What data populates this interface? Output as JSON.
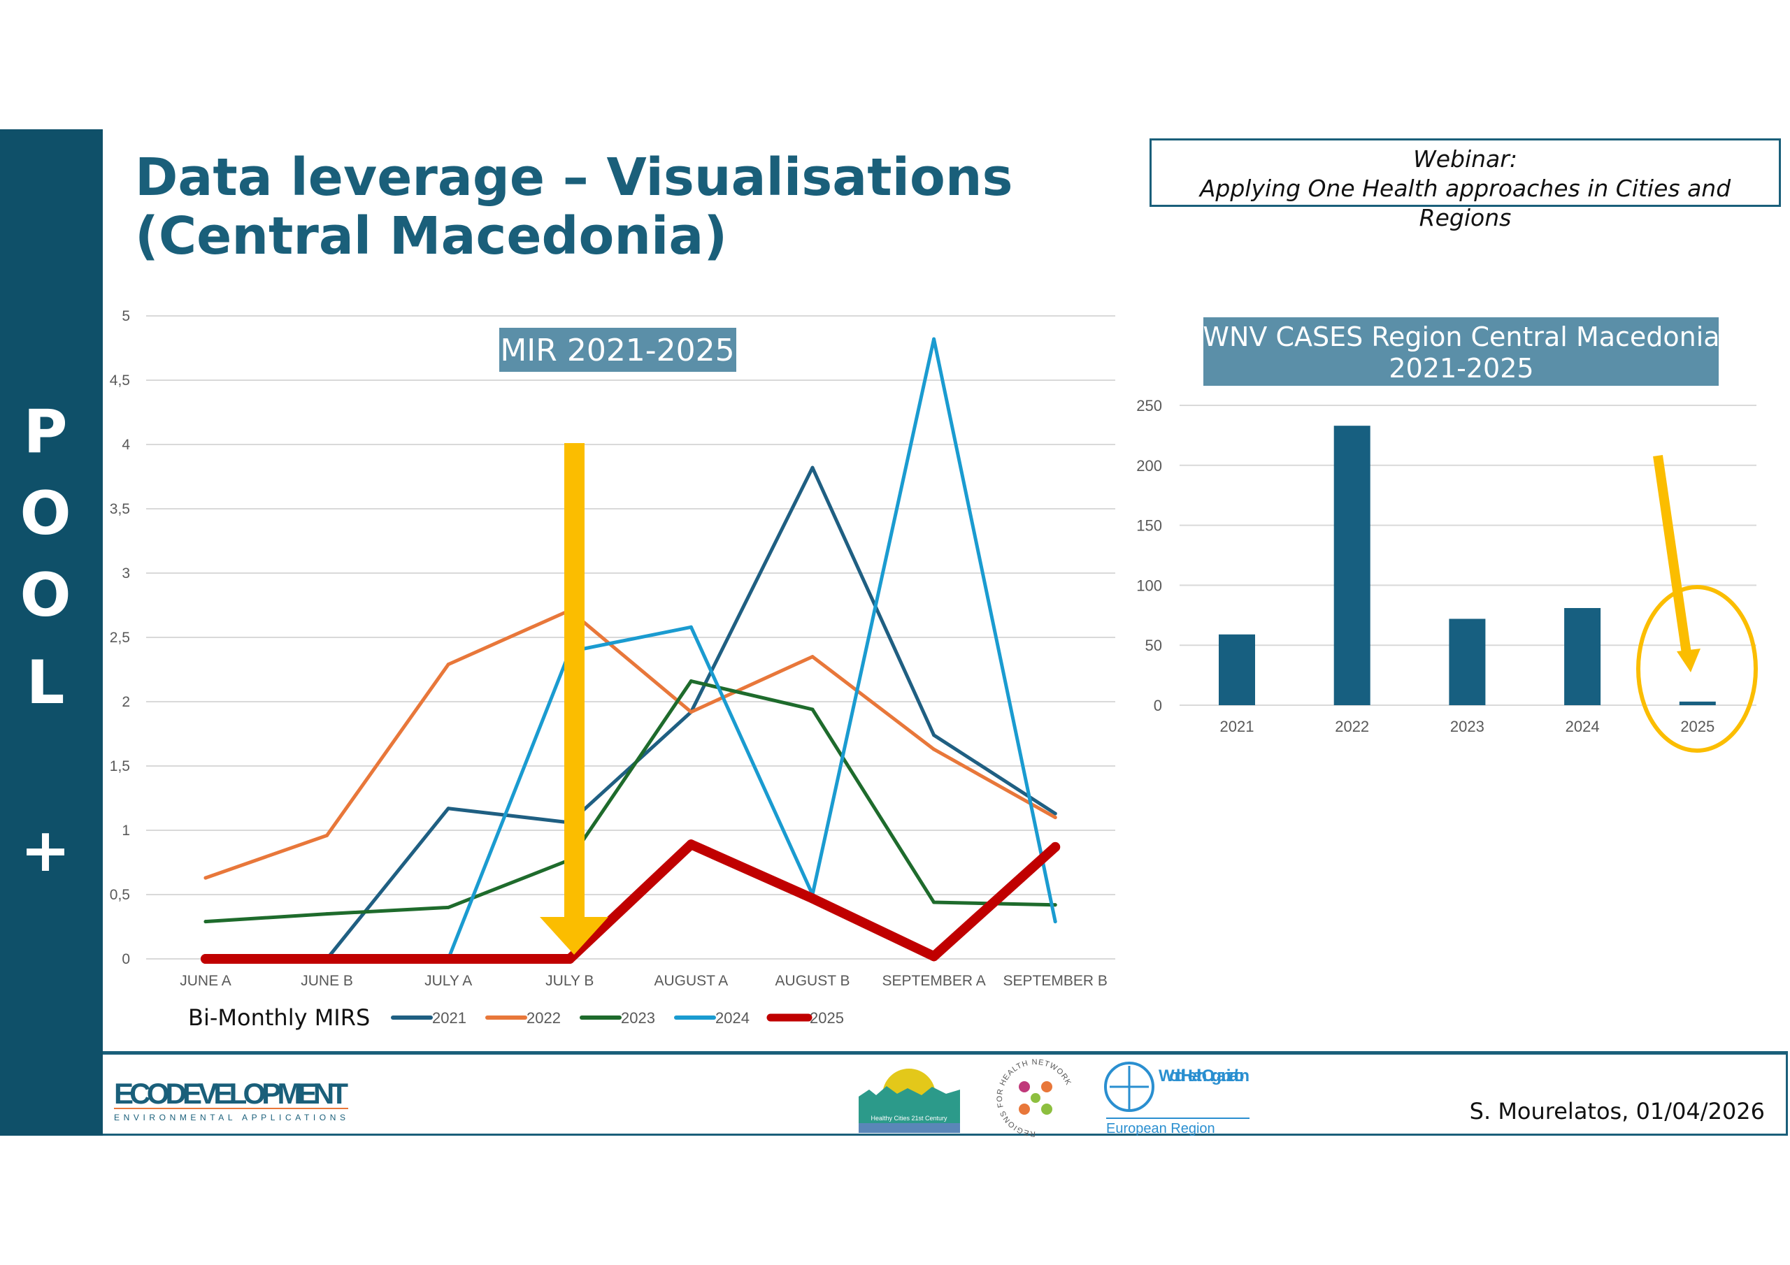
{
  "sidebar": {
    "letters": [
      "P",
      "O",
      "O",
      "L",
      "+"
    ]
  },
  "title": {
    "line1": "Data leverage – Visualisations",
    "line2": "(Central Macedonia)"
  },
  "webinar": {
    "line1": "Webinar:",
    "line2": "Applying One Health approaches in Cities and Regions"
  },
  "footer": {
    "author": "S. Mourelatos, 01/04/2026",
    "logos": [
      "ECODEVELOPMENT",
      "ENVIRONMENTAL APPLICATIONS",
      "Healthy Cities 21st Century",
      "Regions for Health Network",
      "World Health Organization",
      "European Region"
    ]
  },
  "chart_data": [
    {
      "type": "line",
      "title": "MIR 2021-2025",
      "xlabel": "Bi-Monthly MIRS",
      "ylabel": "",
      "ylim": [
        0,
        5
      ],
      "grid": true,
      "legend": "bottom",
      "yticks": [
        "0",
        "0,5",
        "1",
        "1,5",
        "2",
        "2,5",
        "3",
        "3,5",
        "4",
        "4,5",
        "5"
      ],
      "categories": [
        "JUNE A",
        "JUNE B",
        "JULY A",
        "JULY B",
        "AUGUST A",
        "AUGUST B",
        "SEPTEMBER A",
        "SEPTEMBER B"
      ],
      "series": [
        {
          "name": "2021",
          "color": "#1f5f82",
          "width": 5,
          "values": [
            null,
            0,
            1.17,
            1.06,
            1.92,
            3.82,
            1.74,
            1.13
          ]
        },
        {
          "name": "2022",
          "color": "#e8773a",
          "width": 5,
          "values": [
            0.63,
            0.96,
            2.29,
            2.71,
            1.92,
            2.35,
            1.63,
            1.1
          ]
        },
        {
          "name": "2023",
          "color": "#1e6b2c",
          "width": 5,
          "values": [
            0.29,
            0.35,
            0.4,
            0.77,
            2.16,
            1.94,
            0.44,
            0.42
          ]
        },
        {
          "name": "2024",
          "color": "#1a9bd0",
          "width": 5,
          "values": [
            null,
            null,
            0,
            2.39,
            2.58,
            0.5,
            4.82,
            0.29
          ]
        },
        {
          "name": "2025",
          "color": "#c00000",
          "width": 14,
          "values": [
            0,
            0,
            0,
            0,
            0.89,
            0.47,
            0.02,
            0.87
          ]
        }
      ]
    },
    {
      "type": "bar",
      "title": "WNV CASES Region Central Macedonia 2021-2025",
      "title_lines": [
        "WNV CASES Region Central Macedonia",
        "2021-2025"
      ],
      "ylim": [
        0,
        250
      ],
      "grid": true,
      "yticks": [
        "0",
        "50",
        "100",
        "150",
        "200",
        "250"
      ],
      "categories": [
        "2021",
        "2022",
        "2023",
        "2024",
        "2025"
      ],
      "values": [
        59,
        233,
        72,
        81,
        3
      ],
      "color": "#175f80"
    }
  ],
  "colors": {
    "accent": "#0f5069",
    "highlight": "#fbbd00",
    "title_box": "#5b8fa8"
  }
}
